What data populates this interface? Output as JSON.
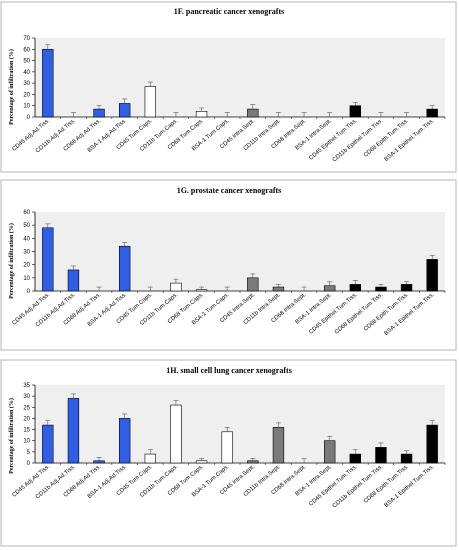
{
  "colors": {
    "adjacent": "#2f5fe8",
    "capsule": "#ffffff",
    "intraseptal": "#7a7a7a",
    "epithelial": "#000000",
    "plot_background": "#efefef",
    "frame": "#b5b5b5"
  },
  "chart_data": [
    {
      "type": "bar",
      "title": "1F.  pancreatic cancer xenografts",
      "ylabel": "Percentage of infiltration (%)",
      "xlabel": "",
      "ylim": [
        0,
        70
      ],
      "yticks": [
        0,
        10,
        20,
        30,
        40,
        50,
        60,
        70
      ],
      "grid": false,
      "categories": [
        "CD45 Adj.Ad.Tiss.",
        "CD11b Adj.Ad.Tiss.",
        "CD68 Adj.Ad.Tiss.",
        "BSA-1 Adj.Ad.Tiss.",
        "CD45 Tum.Caps.",
        "CD11b Tum.Caps.",
        "CD68 Tum.Caps.",
        "BSA-1 Tum.Caps.",
        "CD45 Intra.Sept.",
        "CD11b Intra.Sept.",
        "CD68 Intra.Sept.",
        "BSA-1 Intra.Sept.",
        "CD45 Epithel.Tum.Tiss.",
        "CD11b Epithel.Tum.Tiss.",
        "CD68 Epith.Tum.Tiss.",
        "BSA-1 Epithel.Tum.Tiss."
      ],
      "groups": [
        "adjacent",
        "adjacent",
        "adjacent",
        "adjacent",
        "capsule",
        "capsule",
        "capsule",
        "capsule",
        "intraseptal",
        "intraseptal",
        "intraseptal",
        "intraseptal",
        "epithelial",
        "epithelial",
        "epithelial",
        "epithelial"
      ],
      "values": [
        60,
        0,
        7,
        12,
        27,
        0,
        5,
        0,
        7,
        0,
        0,
        0,
        10,
        0,
        0,
        7
      ],
      "errors": [
        4,
        4,
        3,
        4,
        4,
        4,
        3,
        4,
        4,
        4,
        4,
        4,
        3,
        4,
        4,
        3
      ]
    },
    {
      "type": "bar",
      "title": "1G.  prostate cancer xenografts",
      "ylabel": "Percentage of infiltration (%)",
      "xlabel": "",
      "ylim": [
        0,
        60
      ],
      "yticks": [
        0,
        10,
        20,
        30,
        40,
        50,
        60
      ],
      "grid": false,
      "categories": [
        "CD45 Adj.Ad.Tiss.",
        "CD11b Adj.Ad.Tiss.",
        "CD68 Adj.Ad.Tiss.",
        "BSA-1 Adj.Ad.Tiss.",
        "CD45 Tum.Caps.",
        "CD11b Tum.Caps.",
        "CD68 Tum.Caps.",
        "BSA-1 Tum.Caps.",
        "CD45 Intra.Sept.",
        "CD11b Intra.Sept.",
        "CD68 Intra.Sept.",
        "BSA-1 Intra.Sept.",
        "CD45 Epithel.Tum.Tiss.",
        "CD68 Epithel.Tum.Tiss.",
        "CD68 Epith.Tum.Tiss.",
        "BSA-1 Epithel.Tum.Tiss."
      ],
      "groups": [
        "adjacent",
        "adjacent",
        "adjacent",
        "adjacent",
        "capsule",
        "capsule",
        "capsule",
        "capsule",
        "intraseptal",
        "intraseptal",
        "intraseptal",
        "intraseptal",
        "epithelial",
        "epithelial",
        "epithelial",
        "epithelial"
      ],
      "values": [
        48,
        16,
        0,
        34,
        0,
        6,
        1,
        0,
        10,
        3,
        0,
        4,
        5,
        3,
        5,
        24
      ],
      "errors": [
        3,
        3,
        3,
        3,
        3,
        3,
        2,
        3,
        3,
        2,
        3,
        3,
        3,
        2,
        2,
        3
      ]
    },
    {
      "type": "bar",
      "title": "1H.  small cell lung cancer xenografts",
      "ylabel": "Percentage of infiltration (%)",
      "xlabel": "",
      "ylim": [
        0,
        35
      ],
      "yticks": [
        0,
        5,
        10,
        15,
        20,
        25,
        30,
        35
      ],
      "grid": false,
      "categories": [
        "CD45 Adj.Ad.Tiss.",
        "CD11b Adj.Ad.Tiss.",
        "CD68 Adj.Ad.Tiss.",
        "BSA-1 Adj.Ad.Tiss.",
        "CD45 Tum.Caps.",
        "CD11b Tum.Caps.",
        "CD68 Tum.Caps.",
        "BSA-1 Tum.Caps.",
        "CD45 Intra.Sept.",
        "CD11b Intra.Sept.",
        "CD68 Intra.Sept.",
        "BSA-1 Intra.Sept.",
        "CD45 Epithel.Tum.Tiss.",
        "CD11b Epithel.Tum.Tiss.",
        "CD68 Epith.Tum.Tiss.",
        "BSA-1 Epithel.Tum.Tiss."
      ],
      "groups": [
        "adjacent",
        "adjacent",
        "adjacent",
        "adjacent",
        "capsule",
        "capsule",
        "capsule",
        "capsule",
        "intraseptal",
        "intraseptal",
        "intraseptal",
        "intraseptal",
        "epithelial",
        "epithelial",
        "epithelial",
        "epithelial"
      ],
      "values": [
        17,
        29,
        1,
        20,
        4,
        26,
        1,
        14,
        1,
        16,
        0,
        10,
        4,
        7,
        4,
        17
      ],
      "errors": [
        2,
        2,
        1.5,
        2,
        2,
        2,
        1,
        2,
        1,
        2,
        2,
        2,
        2,
        2,
        1.5,
        2
      ]
    }
  ]
}
